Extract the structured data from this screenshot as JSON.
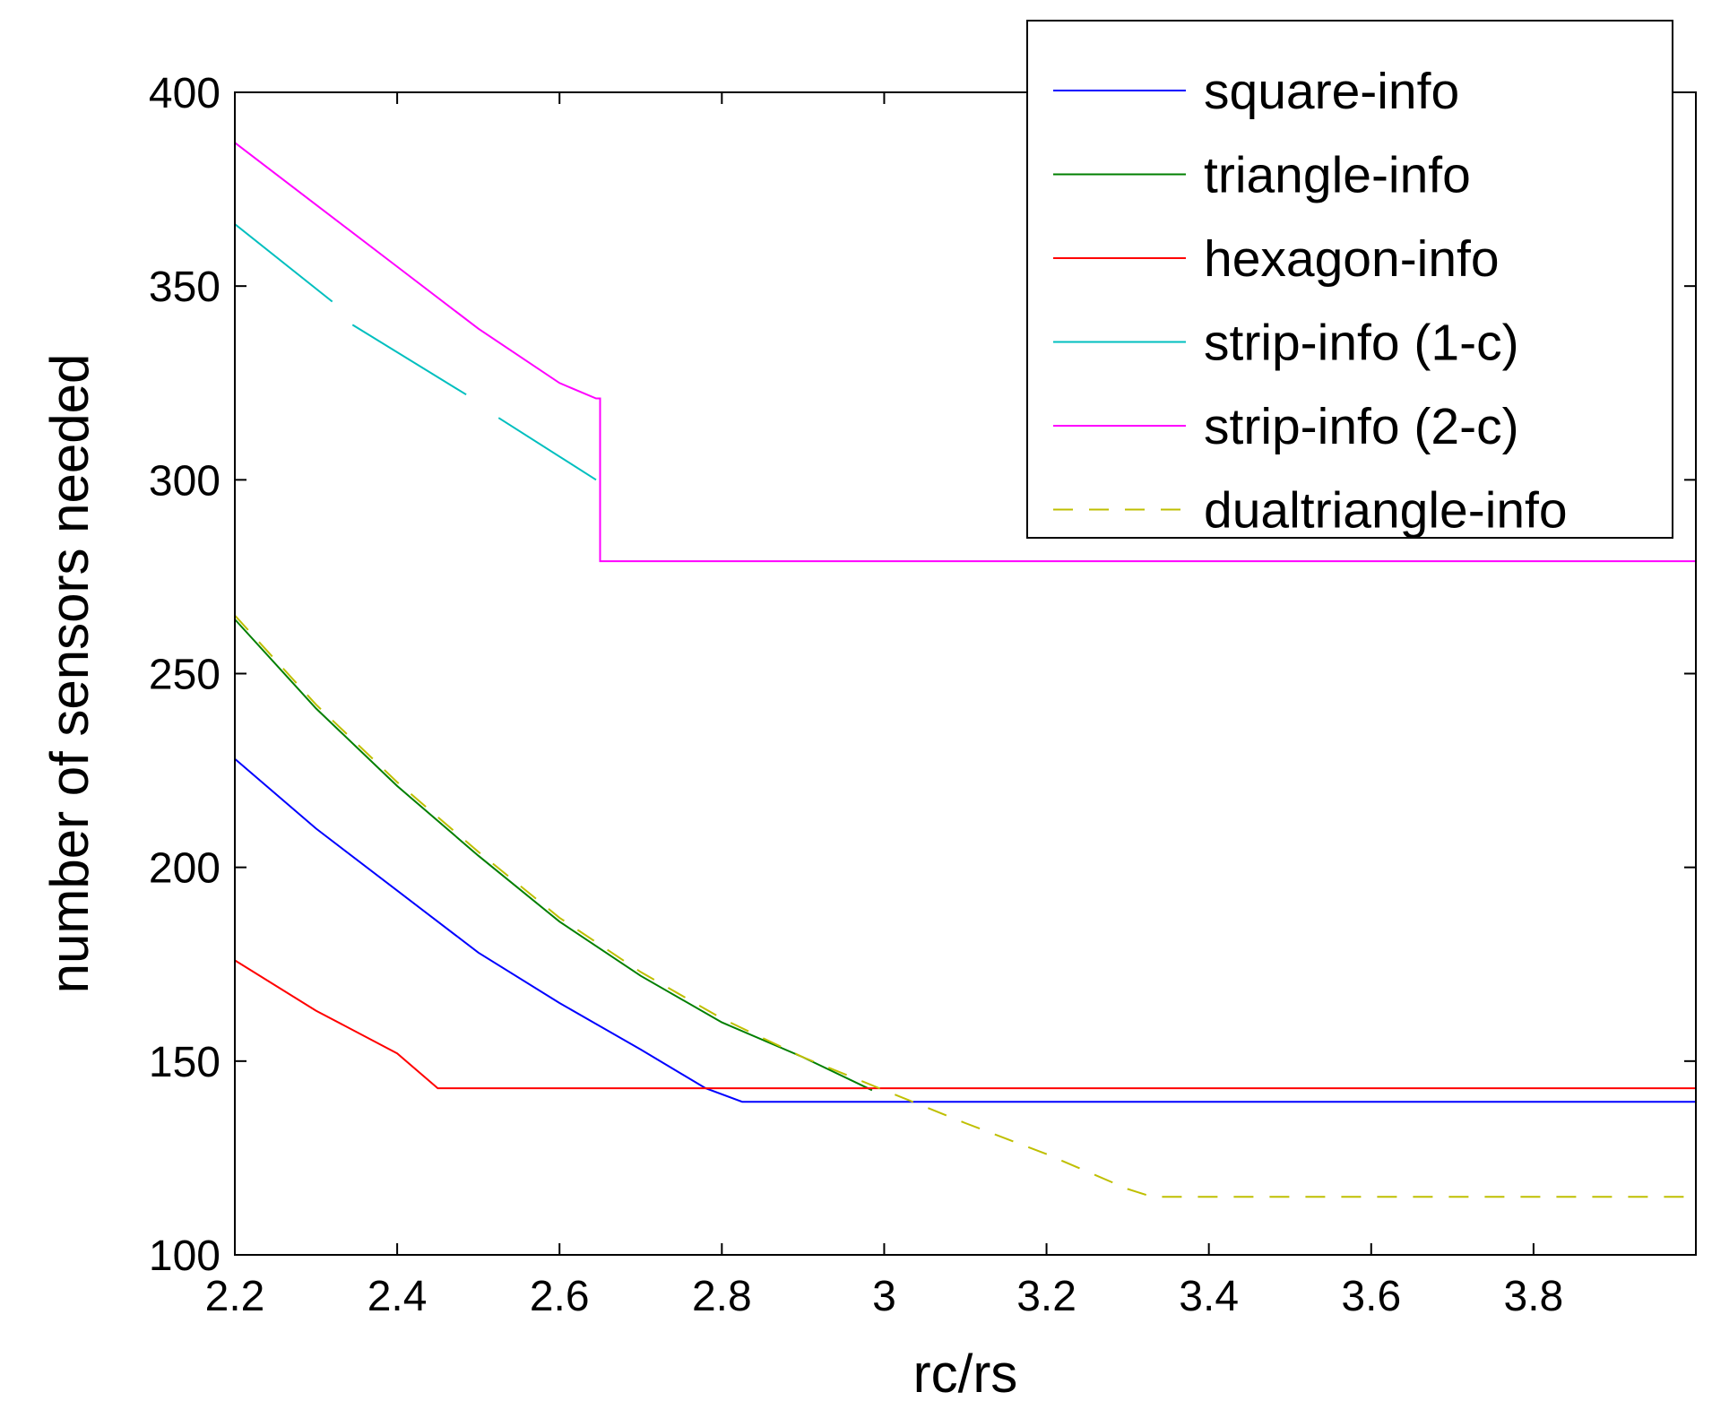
{
  "chart_data": {
    "type": "line",
    "title": "",
    "xlabel": "rc/rs",
    "ylabel": "number of sensors needed",
    "xlim": [
      2.2,
      4.0
    ],
    "ylim": [
      100,
      400
    ],
    "grid": false,
    "legend_position": "top-right",
    "x_ticks": [
      2.2,
      2.4,
      2.6,
      2.8,
      3.0,
      3.2,
      3.4,
      3.6,
      3.8
    ],
    "x_tick_labels": [
      "2.2",
      "2.4",
      "2.6",
      "2.8",
      "3",
      "3.2",
      "3.4",
      "3.6",
      "3.8"
    ],
    "y_ticks": [
      100,
      150,
      200,
      250,
      300,
      350,
      400
    ],
    "y_tick_labels": [
      "100",
      "150",
      "200",
      "250",
      "300",
      "350",
      "400"
    ],
    "series": [
      {
        "name": "square-info",
        "color": "#0000ff",
        "dash": "solid",
        "points": [
          [
            2.2,
            228
          ],
          [
            2.3,
            210
          ],
          [
            2.4,
            194
          ],
          [
            2.5,
            178
          ],
          [
            2.6,
            165
          ],
          [
            2.7,
            153
          ],
          [
            2.78,
            143
          ],
          [
            2.825,
            139.5
          ],
          [
            4.0,
            139.5
          ]
        ]
      },
      {
        "name": "triangle-info",
        "color": "#007f00",
        "dash": "solid",
        "points": [
          [
            2.2,
            264
          ],
          [
            2.3,
            241
          ],
          [
            2.4,
            221
          ],
          [
            2.5,
            203
          ],
          [
            2.6,
            186
          ],
          [
            2.7,
            172
          ],
          [
            2.8,
            160
          ],
          [
            2.9,
            151
          ],
          [
            2.985,
            142.5
          ]
        ]
      },
      {
        "name": "hexagon-info",
        "color": "#ff0000",
        "dash": "solid",
        "points": [
          [
            2.2,
            176
          ],
          [
            2.3,
            163
          ],
          [
            2.4,
            152
          ],
          [
            2.45,
            143
          ],
          [
            4.0,
            143
          ]
        ]
      },
      {
        "name": "strip-info (1-c)",
        "color": "#00bfbf",
        "dash": "gapped",
        "segments": [
          [
            [
              2.2,
              366
            ],
            [
              2.32,
              346
            ]
          ],
          [
            [
              2.345,
              340
            ],
            [
              2.485,
              322
            ]
          ],
          [
            [
              2.525,
              316
            ],
            [
              2.645,
              300
            ]
          ]
        ]
      },
      {
        "name": "strip-info (2-c)",
        "color": "#ff00ff",
        "dash": "solid",
        "points": [
          [
            2.2,
            387
          ],
          [
            2.3,
            371
          ],
          [
            2.4,
            355
          ],
          [
            2.5,
            339
          ],
          [
            2.6,
            325
          ],
          [
            2.645,
            321
          ],
          [
            2.65,
            321
          ],
          [
            2.65,
            279
          ],
          [
            4.0,
            279
          ]
        ]
      },
      {
        "name": "dualtriangle-info",
        "color": "#bfbf00",
        "dash": "dashed",
        "points": [
          [
            2.2,
            265
          ],
          [
            2.3,
            242
          ],
          [
            2.4,
            222
          ],
          [
            2.5,
            204
          ],
          [
            2.6,
            187
          ],
          [
            2.7,
            173
          ],
          [
            2.8,
            161
          ],
          [
            2.9,
            151
          ],
          [
            3.0,
            142.5
          ],
          [
            3.1,
            134
          ],
          [
            3.2,
            126
          ],
          [
            3.3,
            117
          ],
          [
            3.33,
            115
          ],
          [
            4.0,
            115
          ]
        ]
      }
    ]
  }
}
